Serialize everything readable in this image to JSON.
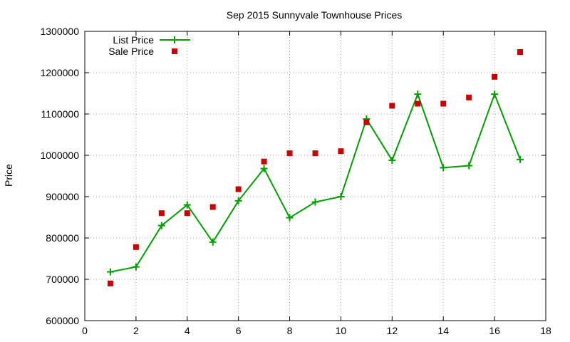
{
  "chart_data": {
    "type": "line",
    "title": "Sep 2015 Sunnyvale Townhouse Prices",
    "xlabel": "",
    "ylabel": "Price",
    "xlim": [
      0,
      18
    ],
    "ylim": [
      600000,
      1300000
    ],
    "xticks": [
      0,
      2,
      4,
      6,
      8,
      10,
      12,
      14,
      16,
      18
    ],
    "yticks": [
      600000,
      700000,
      800000,
      900000,
      1000000,
      1100000,
      1200000,
      1300000
    ],
    "grid": true,
    "legend_position": "top-left",
    "series": [
      {
        "name": "List Price",
        "kind": "line+points",
        "marker": "plus",
        "color": "#00a000",
        "x": [
          1,
          2,
          3,
          4,
          5,
          6,
          7,
          8,
          9,
          10,
          11,
          12,
          13,
          14,
          15,
          16,
          17
        ],
        "y": [
          718000,
          730000,
          830000,
          880000,
          790000,
          890000,
          968000,
          849000,
          887000,
          900000,
          1088000,
          988000,
          1148000,
          970000,
          975000,
          1148000,
          990000
        ]
      },
      {
        "name": "Sale Price",
        "kind": "points",
        "marker": "square",
        "color": "#cc0000",
        "x": [
          1,
          2,
          3,
          4,
          5,
          6,
          7,
          8,
          9,
          10,
          11,
          12,
          13,
          14,
          15,
          16,
          17
        ],
        "y": [
          690000,
          778000,
          860000,
          860000,
          875000,
          918000,
          985000,
          1005000,
          1005000,
          1010000,
          1080000,
          1120000,
          1125000,
          1125000,
          1140000,
          1190000,
          1250000
        ]
      }
    ]
  }
}
